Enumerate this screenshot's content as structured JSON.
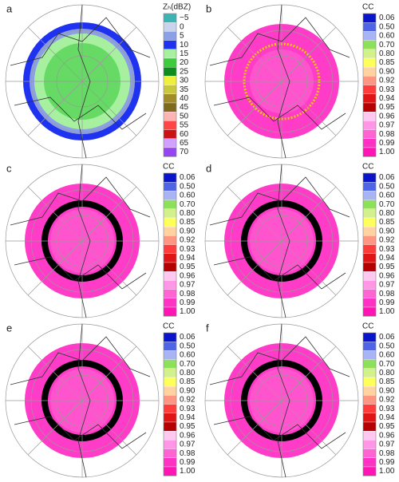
{
  "panels": [
    {
      "label": "a",
      "colorbar": {
        "title": "Zₕ(dBZ)",
        "ticks": [
          "−5",
          "0",
          "5",
          "10",
          "15",
          "20",
          "25",
          "30",
          "35",
          "40",
          "45",
          "50",
          "55",
          "60",
          "65",
          "70"
        ],
        "colors": [
          "#3cb4b4",
          "#c8d4ec",
          "#8ca0e6",
          "#1e32f0",
          "#a6f0a0",
          "#3ccc3c",
          "#0e8c1e",
          "#f0f03c",
          "#c8c83c",
          "#a08c28",
          "#7e6a1e",
          "#ffb4b4",
          "#ff4646",
          "#c81414",
          "#d2a0ff",
          "#9446f0"
        ]
      }
    },
    {
      "label": "b",
      "colorbar": {
        "title": "CC",
        "ticks": [
          "0.06",
          "0.50",
          "0.60",
          "0.70",
          "0.80",
          "0.85",
          "0.90",
          "0.92",
          "0.93",
          "0.94",
          "0.95",
          "0.96",
          "0.97",
          "0.98",
          "0.99",
          "1.00"
        ],
        "colors": [
          "#0a14c8",
          "#5064e6",
          "#a8b4f4",
          "#8ce05a",
          "#d2f08c",
          "#ffff5a",
          "#ffd2a0",
          "#ff9682",
          "#ff3c3c",
          "#e01414",
          "#b40000",
          "#ffc8f0",
          "#ff96e6",
          "#ff64d2",
          "#ff32c3",
          "#ff14b4"
        ]
      }
    },
    {
      "label": "c",
      "colorbar": {
        "title": "CC",
        "ticks": [
          "0.06",
          "0.50",
          "0.60",
          "0.70",
          "0.80",
          "0.85",
          "0.90",
          "0.92",
          "0.93",
          "0.94",
          "0.95",
          "0.96",
          "0.97",
          "0.98",
          "0.99",
          "1.00"
        ],
        "colors": [
          "#0a14c8",
          "#5064e6",
          "#a8b4f4",
          "#8ce05a",
          "#d2f08c",
          "#ffff5a",
          "#ffd2a0",
          "#ff9682",
          "#ff3c3c",
          "#e01414",
          "#b40000",
          "#ffc8f0",
          "#ff96e6",
          "#ff64d2",
          "#ff32c3",
          "#ff14b4"
        ]
      }
    },
    {
      "label": "d",
      "colorbar": {
        "title": "CC",
        "ticks": [
          "0.06",
          "0.50",
          "0.60",
          "0.70",
          "0.80",
          "0.85",
          "0.90",
          "0.92",
          "0.93",
          "0.94",
          "0.95",
          "0.96",
          "0.97",
          "0.98",
          "0.99",
          "1.00"
        ],
        "colors": [
          "#0a14c8",
          "#5064e6",
          "#a8b4f4",
          "#8ce05a",
          "#d2f08c",
          "#ffff5a",
          "#ffd2a0",
          "#ff9682",
          "#ff3c3c",
          "#e01414",
          "#b40000",
          "#ffc8f0",
          "#ff96e6",
          "#ff64d2",
          "#ff32c3",
          "#ff14b4"
        ]
      }
    },
    {
      "label": "e",
      "colorbar": {
        "title": "CC",
        "ticks": [
          "0.06",
          "0.50",
          "0.60",
          "0.70",
          "0.80",
          "0.85",
          "0.90",
          "0.92",
          "0.93",
          "0.94",
          "0.95",
          "0.96",
          "0.97",
          "0.98",
          "0.99",
          "1.00"
        ],
        "colors": [
          "#0a14c8",
          "#5064e6",
          "#a8b4f4",
          "#8ce05a",
          "#d2f08c",
          "#ffff5a",
          "#ffd2a0",
          "#ff9682",
          "#ff3c3c",
          "#e01414",
          "#b40000",
          "#ffc8f0",
          "#ff96e6",
          "#ff64d2",
          "#ff32c3",
          "#ff14b4"
        ]
      }
    },
    {
      "label": "f",
      "colorbar": {
        "title": "CC",
        "ticks": [
          "0.06",
          "0.50",
          "0.60",
          "0.70",
          "0.80",
          "0.85",
          "0.90",
          "0.92",
          "0.93",
          "0.94",
          "0.95",
          "0.96",
          "0.97",
          "0.98",
          "0.99",
          "1.00"
        ],
        "colors": [
          "#0a14c8",
          "#5064e6",
          "#a8b4f4",
          "#8ce05a",
          "#d2f08c",
          "#ffff5a",
          "#ffd2a0",
          "#ff9682",
          "#ff3c3c",
          "#e01414",
          "#b40000",
          "#ffc8f0",
          "#ff96e6",
          "#ff64d2",
          "#ff32c3",
          "#ff14b4"
        ]
      }
    }
  ]
}
